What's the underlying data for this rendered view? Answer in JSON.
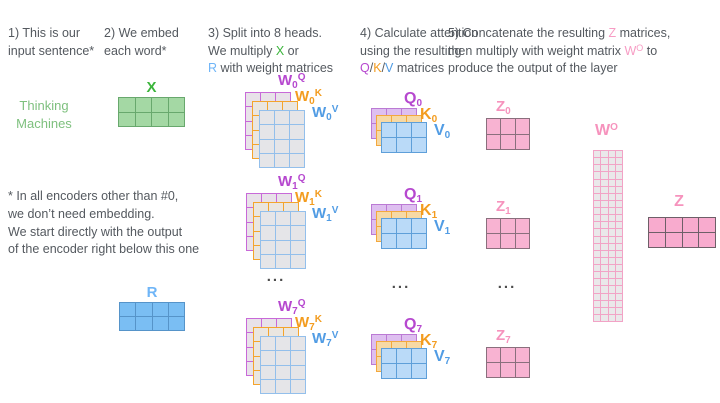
{
  "steps": [
    {
      "segments": [
        {
          "text": "1) This is our\ninput sentence*",
          "color": "dark"
        }
      ]
    },
    {
      "segments": [
        {
          "text": "2) We embed\neach word*",
          "color": "dark"
        }
      ]
    },
    {
      "segments": [
        {
          "text": "3) Split into 8 heads.\nWe multiply ",
          "color": "dark"
        },
        {
          "text": "X",
          "color": "green"
        },
        {
          "text": " or\n",
          "color": "dark"
        },
        {
          "text": "R",
          "color": "blue"
        },
        {
          "text": " with weight matrices",
          "color": "dark"
        }
      ]
    },
    {
      "segments": [
        {
          "text": "4) Calculate attention\nusing the resulting\n",
          "color": "dark"
        },
        {
          "text": "Q",
          "color": "purple"
        },
        {
          "text": "/",
          "color": "dark"
        },
        {
          "text": "K",
          "color": "orange"
        },
        {
          "text": "/",
          "color": "dark"
        },
        {
          "text": "V",
          "color": "vblue"
        },
        {
          "text": " matrices",
          "color": "dark"
        }
      ]
    },
    {
      "segments": [
        {
          "text": "5) Concatenate the resulting ",
          "color": "dark"
        },
        {
          "text": "Z",
          "color": "pink"
        },
        {
          "text": " matrices,\nthen multiply with weight matrix ",
          "color": "dark"
        },
        {
          "text": "W",
          "color": "pink"
        },
        {
          "text": "O",
          "color": "pink",
          "sup": true
        },
        {
          "text": " to\nproduce the output of the layer",
          "color": "dark"
        }
      ]
    }
  ],
  "footnote": "* In all encoders other than #0,\nwe don’t need embedding.\nWe start directly with the output\nof the encoder right below this one",
  "input_words": "Thinking\nMachines",
  "letters": {
    "w": "W",
    "x": "X",
    "r": "R",
    "q": "Q",
    "k": "K",
    "v": "V",
    "z": "Z",
    "o": "O"
  },
  "heads": [
    {
      "sub": "0"
    },
    {
      "sub": "1"
    },
    {
      "sub": "7"
    }
  ],
  "ellipsis": "...",
  "matrices": {
    "x": {
      "rows": 2,
      "cols": 4
    },
    "r": {
      "rows": 2,
      "cols": 4
    },
    "w": {
      "rows": 4,
      "cols": 3
    },
    "qkv": {
      "rows": 2,
      "cols": 3
    },
    "z_head": {
      "rows": 2,
      "cols": 3
    },
    "wo": {
      "rows": 24,
      "cols": 4
    },
    "z_out": {
      "rows": 2,
      "cols": 4
    }
  },
  "colors": {
    "text": "#54595f",
    "green": "#3cb53c",
    "green_light": "#7ec07e",
    "blue_light": "#6fb5f7",
    "blue": "#519ce4",
    "purple": "#b648cf",
    "orange": "#f39c1f",
    "pink": "#f693bd",
    "x_fill": "#a4d8a4",
    "r_fill": "#7abef3",
    "q_fill": "#debff0",
    "k_fill": "#f7d9a5",
    "v_fill": "#badaf8",
    "z_fill": "#f8b3d2",
    "weight_fill": "#e6e4e7"
  }
}
